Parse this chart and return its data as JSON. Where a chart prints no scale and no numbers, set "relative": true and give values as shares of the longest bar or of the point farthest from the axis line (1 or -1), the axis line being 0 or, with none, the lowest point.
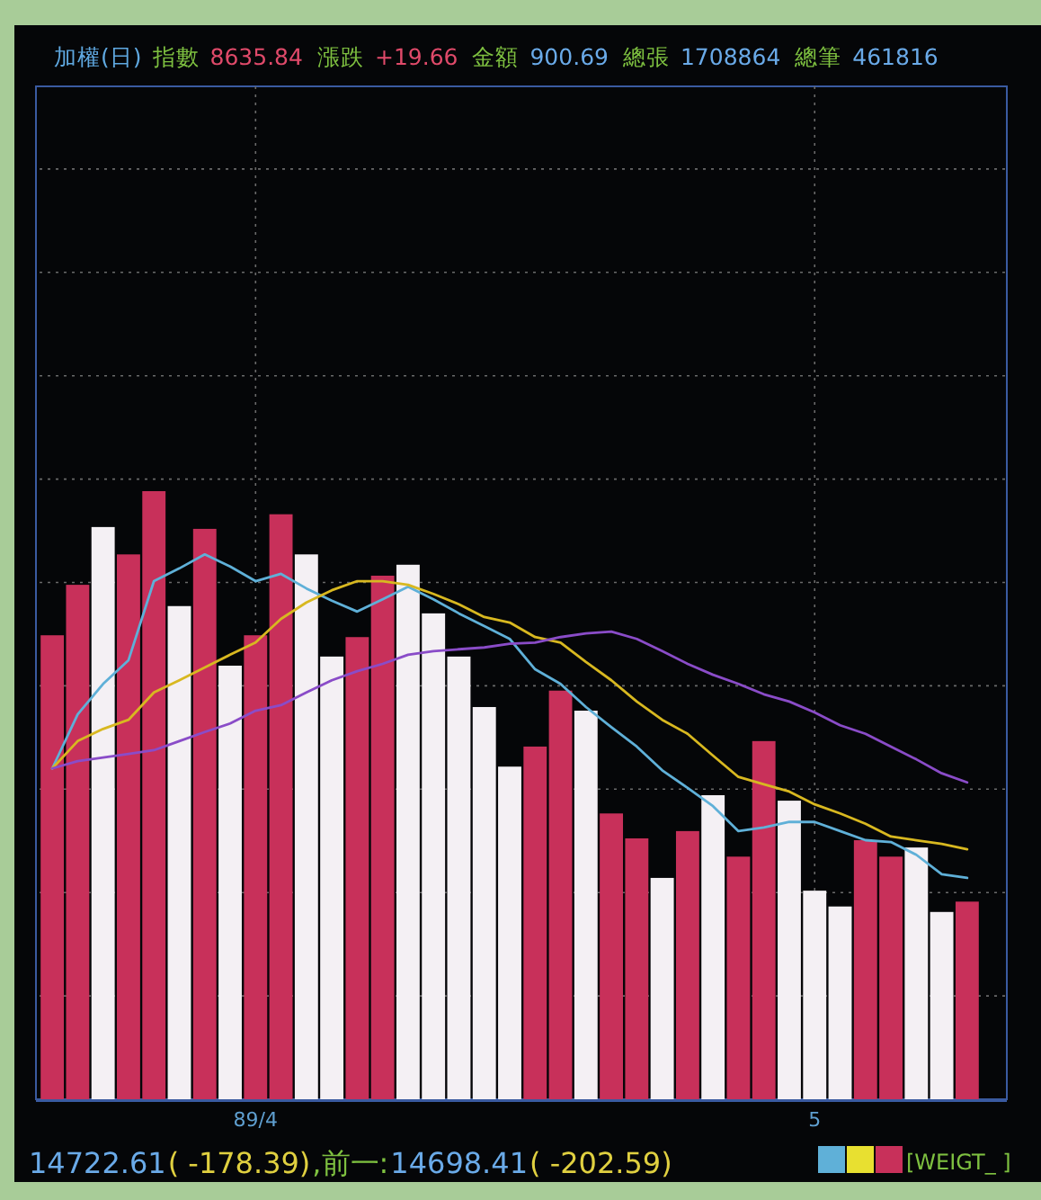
{
  "chart_data": {
    "type": "bar",
    "relative": true,
    "grid": true,
    "annotations": [
      "加權(日)",
      "指數",
      "8635.84",
      "漲跌",
      "+19.66",
      "金額",
      "900.69",
      "總張",
      "1708864",
      "總筆",
      "461816",
      "14722.61",
      "( -178.39)",
      ",前一:",
      "14698.41",
      "( -202.59)",
      "[WEIGT_ ]"
    ],
    "categories": [
      null,
      null,
      null,
      null,
      null,
      null,
      null,
      null,
      "89/4",
      null,
      null,
      null,
      null,
      null,
      null,
      null,
      null,
      null,
      null,
      null,
      null,
      null,
      null,
      null,
      null,
      null,
      null,
      null,
      null,
      null,
      "5",
      null,
      null,
      null,
      null,
      null,
      null
    ],
    "series": [
      {
        "colors": [
          "#c8305a",
          "#c8305a",
          "#f4f0f4",
          "#c8305a",
          "#c8305a",
          "#f4f0f4",
          "#c8305a",
          "#f4f0f4",
          "#c8305a",
          "#c8305a",
          "#f4f0f4",
          "#f4f0f4",
          "#c8305a",
          "#c8305a",
          "#f4f0f4",
          "#f4f0f4",
          "#f4f0f4",
          "#f4f0f4",
          "#f4f0f4",
          "#c8305a",
          "#c8305a",
          "#f4f0f4",
          "#c8305a",
          "#c8305a",
          "#f4f0f4",
          "#c8305a",
          "#f4f0f4",
          "#c8305a",
          "#c8305a",
          "#f4f0f4",
          "#f4f0f4",
          "#f4f0f4",
          "#c8305a",
          "#c8305a",
          "#f4f0f4",
          "#f4f0f4",
          "#c8305a"
        ],
        "values": [
          0.763,
          0.846,
          0.941,
          0.896,
          1,
          0.811,
          0.938,
          0.713,
          0.763,
          0.962,
          0.896,
          0.728,
          0.76,
          0.861,
          0.879,
          0.799,
          0.728,
          0.645,
          0.547,
          0.58,
          0.672,
          0.639,
          0.47,
          0.429,
          0.364,
          0.441,
          0.5,
          0.399,
          0.589,
          0.491,
          0.343,
          0.317,
          0.426,
          0.399,
          0.414,
          0.308,
          0.325
        ]
      },
      {
        "type": "line",
        "color": "#5fb0d8",
        "values": [
          0.544,
          0.633,
          0.683,
          0.722,
          0.852,
          0.873,
          0.896,
          0.876,
          0.852,
          0.864,
          0.84,
          0.82,
          0.802,
          0.822,
          0.843,
          0.822,
          0.799,
          0.778,
          0.757,
          0.707,
          0.683,
          0.645,
          0.612,
          0.58,
          0.541,
          0.512,
          0.482,
          0.441,
          0.447,
          0.456,
          0.456,
          0.441,
          0.426,
          0.423,
          0.402,
          0.37,
          0.364
        ]
      },
      {
        "type": "line",
        "color": "#d8b820",
        "values": [
          0.544,
          0.589,
          0.609,
          0.624,
          0.669,
          0.689,
          0.71,
          0.731,
          0.751,
          0.79,
          0.817,
          0.837,
          0.852,
          0.852,
          0.846,
          0.831,
          0.814,
          0.793,
          0.784,
          0.76,
          0.751,
          0.719,
          0.689,
          0.654,
          0.624,
          0.601,
          0.565,
          0.53,
          0.518,
          0.506,
          0.485,
          0.47,
          0.453,
          0.432,
          0.426,
          0.42,
          0.411
        ]
      },
      {
        "type": "line",
        "color": "#8a4cc8",
        "values": [
          0.544,
          0.556,
          0.562,
          0.568,
          0.574,
          0.589,
          0.604,
          0.618,
          0.639,
          0.648,
          0.669,
          0.689,
          0.704,
          0.716,
          0.731,
          0.737,
          0.74,
          0.743,
          0.749,
          0.751,
          0.76,
          0.766,
          0.769,
          0.757,
          0.737,
          0.716,
          0.698,
          0.683,
          0.666,
          0.654,
          0.636,
          0.615,
          0.601,
          0.58,
          0.559,
          0.536,
          0.521
        ]
      }
    ]
  }
}
